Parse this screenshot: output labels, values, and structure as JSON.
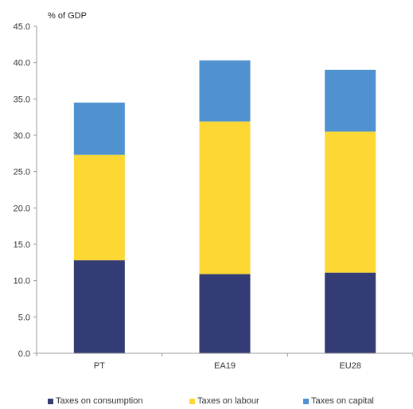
{
  "chart_data": {
    "type": "bar",
    "stacked": true,
    "unit_label": "% of GDP",
    "categories": [
      "PT",
      "EA19",
      "EU28"
    ],
    "series": [
      {
        "name": "Taxes on consumption",
        "color": "#333c74",
        "values": [
          12.8,
          10.9,
          11.1
        ]
      },
      {
        "name": "Taxes on labour",
        "color": "#fdd835",
        "values": [
          14.5,
          21.0,
          19.4
        ]
      },
      {
        "name": "Taxes on capital",
        "color": "#5092d0",
        "values": [
          7.2,
          8.4,
          8.5
        ]
      }
    ],
    "ylim": [
      0,
      45
    ],
    "yticks": [
      "0.0",
      "5.0",
      "10.0",
      "15.0",
      "20.0",
      "25.0",
      "30.0",
      "35.0",
      "40.0",
      "45.0"
    ],
    "grid": false,
    "legend_position": "bottom"
  }
}
